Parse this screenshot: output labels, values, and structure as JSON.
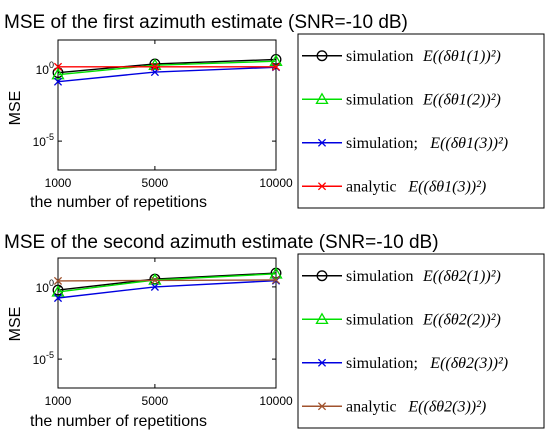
{
  "chart_data": [
    {
      "type": "line",
      "title": "MSE of the first azimuth estimate (SNR=-10 dB)",
      "xlabel": "the number of repetitions",
      "ylabel": "MSE",
      "x": [
        1000,
        5000,
        10000
      ],
      "x_tick_labels": [
        "1000",
        "5000",
        "10000"
      ],
      "xlim": [
        1000,
        10000
      ],
      "y_scale": "log",
      "ylim": [
        1e-07,
        100
      ],
      "y_tick_labels": [
        {
          "value": 1,
          "base": "10",
          "exp": "0"
        },
        {
          "value": 1e-05,
          "base": "10",
          "exp": "-5"
        }
      ],
      "grid": false,
      "legend_position": "outside-right",
      "series": [
        {
          "name": "simulation",
          "legend_math": "E((δθ1(1))²)",
          "marker": "circle",
          "color": "#000000",
          "values": [
            0.55,
            2.2,
            4.5
          ]
        },
        {
          "name": "simulation",
          "legend_math": "E((δθ1(2))²)",
          "marker": "triangle",
          "color": "#00e000",
          "values": [
            0.4,
            1.8,
            3.4
          ]
        },
        {
          "name": "simulation;",
          "legend_math": "E((δθ1(3))²)",
          "marker": "x",
          "color": "#0000e0",
          "values": [
            0.13,
            0.6,
            1.3
          ]
        },
        {
          "name": "analytic",
          "legend_math": "E((δθ1(3))²)",
          "marker": "x",
          "color": "#ff0000",
          "values": [
            1.4,
            1.4,
            1.4
          ]
        }
      ]
    },
    {
      "type": "line",
      "title": "MSE of the second azimuth estimate (SNR=-10 dB)",
      "xlabel": "the number of repetitions",
      "ylabel": "MSE",
      "x": [
        1000,
        5000,
        10000
      ],
      "x_tick_labels": [
        "1000",
        "5000",
        "10000"
      ],
      "xlim": [
        1000,
        10000
      ],
      "y_scale": "log",
      "ylim": [
        1e-07,
        100
      ],
      "y_tick_labels": [
        {
          "value": 1,
          "base": "10",
          "exp": "0"
        },
        {
          "value": 1e-05,
          "base": "10",
          "exp": "-5"
        }
      ],
      "grid": false,
      "legend_position": "outside-right",
      "series": [
        {
          "name": "simulation",
          "legend_math": "E((δθ2(1))²)",
          "marker": "circle",
          "color": "#000000",
          "values": [
            0.6,
            3.5,
            9.0
          ]
        },
        {
          "name": "simulation",
          "legend_math": "E((δθ2(2))²)",
          "marker": "triangle",
          "color": "#00e000",
          "values": [
            0.45,
            3.0,
            8.0
          ]
        },
        {
          "name": "simulation;",
          "legend_math": "E((δθ2(3))²)",
          "marker": "x",
          "color": "#0000e0",
          "values": [
            0.17,
            1.0,
            2.7
          ]
        },
        {
          "name": "analytic",
          "legend_math": "E((δθ2(3))²)",
          "marker": "x",
          "color": "#a0522d",
          "values": [
            2.6,
            2.8,
            3.0
          ]
        }
      ]
    }
  ]
}
